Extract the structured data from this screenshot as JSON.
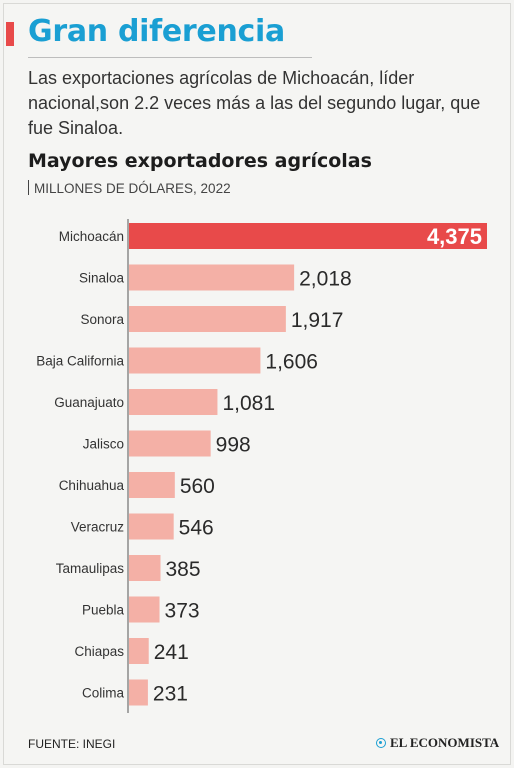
{
  "headline": "Gran diferencia",
  "intro": "Las exportaciones agrícolas de Michoacán, líder nacional,son 2.2 veces más a las del segundo lugar, que fue Sinaloa.",
  "chart_data": {
    "type": "bar",
    "orientation": "horizontal",
    "title": "Mayores exportadores agrícolas",
    "unit_label": "MILLONES DE DÓLARES, 2022",
    "categories": [
      "Michoacán",
      "Sinaloa",
      "Sonora",
      "Baja California",
      "Guanajuato",
      "Jalisco",
      "Chihuahua",
      "Veracruz",
      "Tamaulipas",
      "Puebla",
      "Chiapas",
      "Colima"
    ],
    "values": [
      4375,
      2018,
      1917,
      1606,
      1081,
      998,
      560,
      546,
      385,
      373,
      241,
      231
    ],
    "value_labels": [
      "4,375",
      "2,018",
      "1,917",
      "1,606",
      "1,081",
      "998",
      "560",
      "546",
      "385",
      "373",
      "241",
      "231"
    ],
    "highlight_category": "Michoacán",
    "colors": {
      "highlight": "#e84a4a",
      "bars": "#f4b0a6",
      "highlight_label": "#ffffff",
      "label": "#2a2a2a"
    }
  },
  "footer": {
    "source": "FUENTE: INEGI",
    "brand": "EL ECONOMISTA",
    "brand_icon": "globe-icon"
  }
}
